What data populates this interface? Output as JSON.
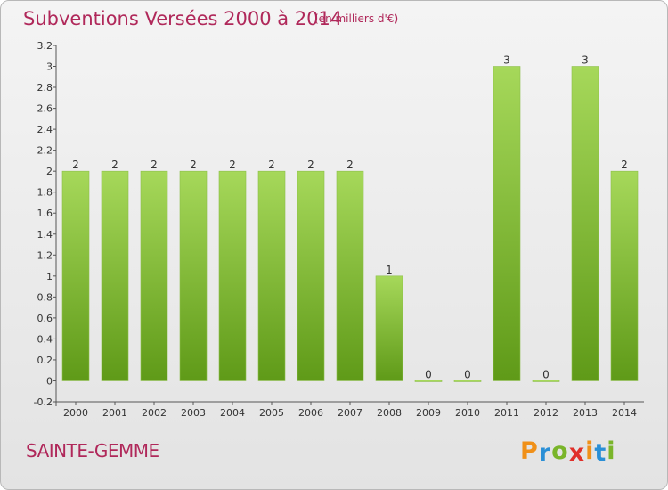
{
  "header": {
    "title": "Subventions Versées 2000 à 2014",
    "unit": "(en milliers d'€)"
  },
  "footer": {
    "commune": "SAINTE-GEMME",
    "logo_text": "Proxiti",
    "logo_letters": [
      "P",
      "r",
      "o",
      "x",
      "i",
      "t",
      "i"
    ],
    "logo_colors": [
      "#f09018",
      "#2a8fd6",
      "#7ab52a",
      "#e0302a",
      "#f09018",
      "#2a8fd6",
      "#7ab52a"
    ]
  },
  "colors": {
    "bar_light": "#a6d85a",
    "bar_dark": "#5f9a18",
    "accent": "#b0285a"
  },
  "chart_data": {
    "type": "bar",
    "title": "Subventions Versées 2000 à 2014",
    "subtitle": "(en milliers d'€)",
    "categories": [
      "2000",
      "2001",
      "2002",
      "2003",
      "2004",
      "2005",
      "2006",
      "2007",
      "2008",
      "2009",
      "2010",
      "2011",
      "2012",
      "2013",
      "2014"
    ],
    "values": [
      2,
      2,
      2,
      2,
      2,
      2,
      2,
      2,
      1,
      0,
      0,
      3,
      0,
      3,
      2
    ],
    "data_labels": [
      "2",
      "2",
      "2",
      "2",
      "2",
      "2",
      "2",
      "2",
      "1",
      "0",
      "0",
      "3",
      "0",
      "3",
      "2"
    ],
    "ylim": [
      -0.2,
      3.2
    ],
    "yticks": [
      "-0.2",
      "0",
      "0.2",
      "0.4",
      "0.6",
      "0.8",
      "1",
      "1.2",
      "1.4",
      "1.6",
      "1.8",
      "2",
      "2.2",
      "2.4",
      "2.6",
      "2.8",
      "3",
      "3.2"
    ],
    "ytick_values": [
      -0.2,
      0,
      0.2,
      0.4,
      0.6,
      0.8,
      1,
      1.2,
      1.4,
      1.6,
      1.8,
      2,
      2.2,
      2.4,
      2.6,
      2.8,
      3,
      3.2
    ],
    "grid": false,
    "legend": "none"
  }
}
